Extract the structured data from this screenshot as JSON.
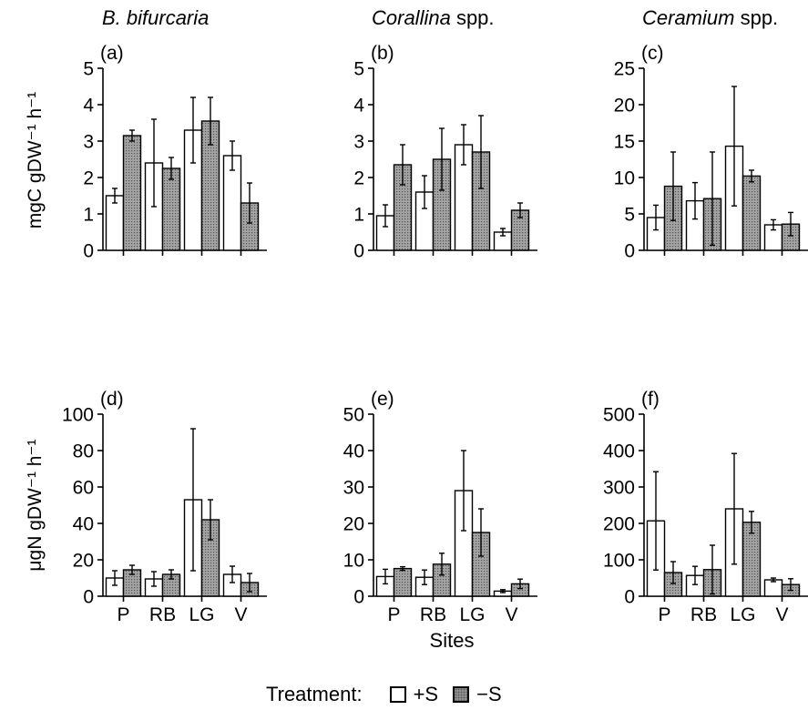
{
  "colors": {
    "plus_fill": "#ffffff",
    "minus_fill": "#9a9a9a",
    "stroke": "#000000"
  },
  "row_ylabels": {
    "top": "mgC gDW⁻¹ h⁻¹",
    "bottom": "μgN gDW⁻¹ h⁻¹"
  },
  "column_titles": [
    {
      "italic": "B. bifurcaria",
      "suffix": ""
    },
    {
      "italic": "Corallina",
      "suffix": " spp."
    },
    {
      "italic": "Ceramium",
      "suffix": " spp."
    }
  ],
  "xlabel": "Sites",
  "legend": {
    "title": "Treatment:",
    "plus_label": "+S",
    "minus_label": "−S"
  },
  "chart_data": [
    {
      "type": "bar",
      "panel": "(a)",
      "categories": [
        "P",
        "RB",
        "LG",
        "V"
      ],
      "ylim": [
        0,
        5
      ],
      "ticks": [
        0,
        1,
        2,
        3,
        4,
        5
      ],
      "series": [
        {
          "name": "+S",
          "values": [
            1.5,
            2.4,
            3.3,
            2.6
          ],
          "errors": [
            0.2,
            1.2,
            0.9,
            0.4
          ]
        },
        {
          "name": "−S",
          "values": [
            3.15,
            2.25,
            3.55,
            1.3
          ],
          "errors": [
            0.15,
            0.3,
            0.65,
            0.55
          ]
        }
      ]
    },
    {
      "type": "bar",
      "panel": "(b)",
      "categories": [
        "P",
        "RB",
        "LG",
        "V"
      ],
      "ylim": [
        0,
        5
      ],
      "ticks": [
        0,
        1,
        2,
        3,
        4,
        5
      ],
      "series": [
        {
          "name": "+S",
          "values": [
            0.95,
            1.6,
            2.9,
            0.5
          ],
          "errors": [
            0.3,
            0.45,
            0.55,
            0.1
          ]
        },
        {
          "name": "−S",
          "values": [
            2.35,
            2.5,
            2.7,
            1.1
          ],
          "errors": [
            0.55,
            0.85,
            1.0,
            0.2
          ]
        }
      ]
    },
    {
      "type": "bar",
      "panel": "(c)",
      "categories": [
        "P",
        "RB",
        "LG",
        "V"
      ],
      "ylim": [
        0,
        25
      ],
      "ticks": [
        0,
        5,
        10,
        15,
        20,
        25
      ],
      "series": [
        {
          "name": "+S",
          "values": [
            4.5,
            6.8,
            14.3,
            3.5
          ],
          "errors": [
            1.7,
            2.5,
            8.2,
            0.7
          ]
        },
        {
          "name": "−S",
          "values": [
            8.8,
            7.1,
            10.2,
            3.6
          ],
          "errors": [
            4.7,
            6.4,
            0.8,
            1.6
          ]
        }
      ]
    },
    {
      "type": "bar",
      "panel": "(d)",
      "categories": [
        "P",
        "RB",
        "LG",
        "V"
      ],
      "ylim": [
        0,
        100
      ],
      "ticks": [
        0,
        20,
        40,
        60,
        80,
        100
      ],
      "series": [
        {
          "name": "+S",
          "values": [
            10,
            9.5,
            53,
            12
          ],
          "errors": [
            4,
            4,
            39,
            4.5
          ]
        },
        {
          "name": "−S",
          "values": [
            14.5,
            12,
            42,
            7.5
          ],
          "errors": [
            2.5,
            2.5,
            11,
            5
          ]
        }
      ]
    },
    {
      "type": "bar",
      "panel": "(e)",
      "categories": [
        "P",
        "RB",
        "LG",
        "V"
      ],
      "ylim": [
        0,
        50
      ],
      "ticks": [
        0,
        10,
        20,
        30,
        40,
        50
      ],
      "series": [
        {
          "name": "+S",
          "values": [
            5.4,
            5.2,
            29,
            1.4
          ],
          "errors": [
            2,
            2,
            11,
            0.4
          ]
        },
        {
          "name": "−S",
          "values": [
            7.6,
            8.8,
            17.5,
            3.4
          ],
          "errors": [
            0.5,
            3,
            6.5,
            1.3
          ]
        }
      ]
    },
    {
      "type": "bar",
      "panel": "(f)",
      "categories": [
        "P",
        "RB",
        "LG",
        "V"
      ],
      "ylim": [
        0,
        500
      ],
      "ticks": [
        0,
        100,
        200,
        300,
        400,
        500
      ],
      "series": [
        {
          "name": "+S",
          "values": [
            207,
            57,
            240,
            45
          ],
          "errors": [
            135,
            25,
            152,
            5
          ]
        },
        {
          "name": "−S",
          "values": [
            65,
            73,
            203,
            32
          ],
          "errors": [
            30,
            67,
            30,
            16
          ]
        }
      ]
    }
  ]
}
